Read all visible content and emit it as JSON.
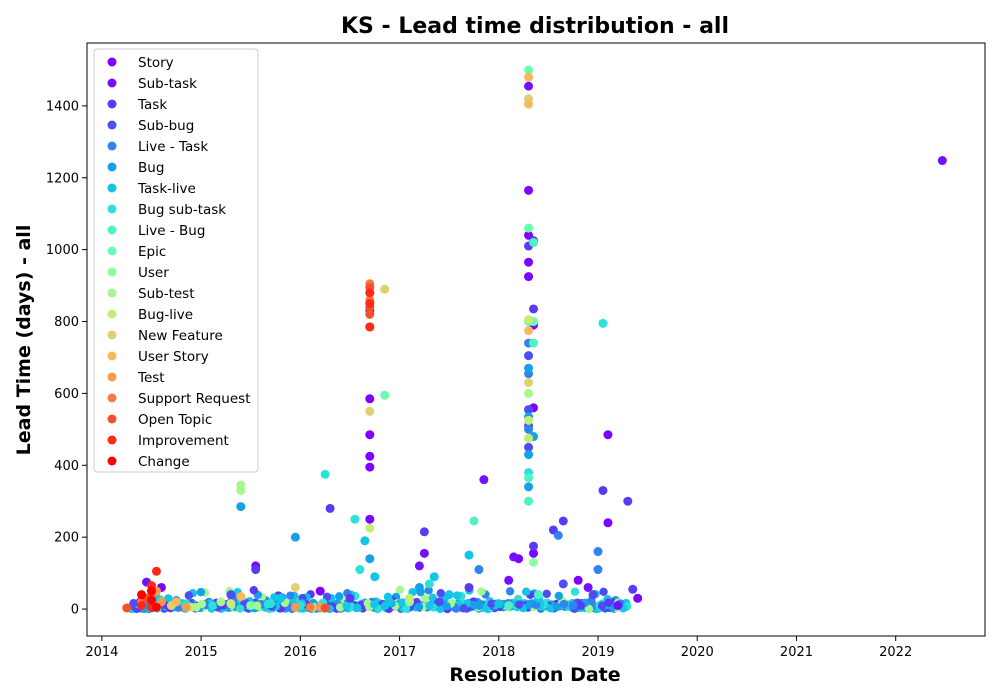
{
  "chart_data": {
    "type": "scatter",
    "title": "KS - Lead time distribution - all",
    "xlabel": "Resolution Date",
    "ylabel": "Lead Time (days) - all",
    "xlim": [
      2013.85,
      2022.9
    ],
    "ylim": [
      -75,
      1575
    ],
    "xticks": [
      2014,
      2015,
      2016,
      2017,
      2018,
      2019,
      2020,
      2021,
      2022
    ],
    "yticks": [
      0,
      200,
      400,
      600,
      800,
      1000,
      1200,
      1400
    ],
    "grid": false,
    "legend_position": "top-left",
    "series": [
      {
        "name": "Story",
        "color": "#8000ff",
        "points": [
          [
            2016.7,
            585
          ],
          [
            2016.7,
            485
          ],
          [
            2016.7,
            425
          ],
          [
            2016.7,
            395
          ],
          [
            2016.7,
            250
          ],
          [
            2018.3,
            1165
          ],
          [
            2018.3,
            1040
          ],
          [
            2018.3,
            965
          ],
          [
            2018.3,
            925
          ],
          [
            2018.35,
            790
          ],
          [
            2018.35,
            560
          ],
          [
            2018.35,
            155
          ],
          [
            2018.2,
            140
          ],
          [
            2018.8,
            80
          ],
          [
            2019.1,
            485
          ],
          [
            2019.1,
            240
          ],
          [
            2019.4,
            30
          ],
          [
            2016.2,
            50
          ],
          [
            2014.6,
            60
          ],
          [
            2015.55,
            120
          ]
        ]
      },
      {
        "name": "Sub-task",
        "color": "#7311ff",
        "points": [
          [
            2022.47,
            1248
          ],
          [
            2018.3,
            1455
          ],
          [
            2016.7,
            830
          ],
          [
            2017.85,
            360
          ],
          [
            2017.25,
            155
          ],
          [
            2018.15,
            145
          ],
          [
            2018.1,
            80
          ],
          [
            2017.2,
            120
          ],
          [
            2014.45,
            75
          ],
          [
            2018.9,
            60
          ],
          [
            2019.2,
            10
          ]
        ]
      },
      {
        "name": "Task",
        "color": "#5a3af5",
        "points": [
          [
            2018.35,
            835
          ],
          [
            2018.3,
            1010
          ],
          [
            2018.35,
            1025
          ],
          [
            2016.3,
            280
          ],
          [
            2017.25,
            215
          ],
          [
            2018.35,
            175
          ],
          [
            2018.55,
            220
          ],
          [
            2018.65,
            245
          ],
          [
            2019.05,
            330
          ],
          [
            2019.3,
            300
          ],
          [
            2015.55,
            110
          ],
          [
            2019.35,
            55
          ],
          [
            2017.7,
            60
          ],
          [
            2016.5,
            30
          ]
        ]
      },
      {
        "name": "Sub-bug",
        "color": "#4d4df3",
        "points": [
          [
            2018.3,
            705
          ],
          [
            2018.3,
            555
          ],
          [
            2018.3,
            510
          ],
          [
            2018.3,
            450
          ],
          [
            2018.65,
            70
          ],
          [
            2018.95,
            40
          ],
          [
            2017.4,
            20
          ],
          [
            2015.3,
            40
          ]
        ]
      },
      {
        "name": "Live - Task",
        "color": "#2f84f0",
        "points": [
          [
            2018.3,
            740
          ],
          [
            2018.3,
            655
          ],
          [
            2018.3,
            500
          ],
          [
            2019.0,
            160
          ],
          [
            2019.0,
            110
          ],
          [
            2018.6,
            205
          ],
          [
            2017.8,
            110
          ],
          [
            2018.75,
            10
          ]
        ]
      },
      {
        "name": "Bug",
        "color": "#16a0e8",
        "points": [
          [
            2015.4,
            285
          ],
          [
            2015.95,
            200
          ],
          [
            2018.3,
            670
          ],
          [
            2018.3,
            535
          ],
          [
            2018.3,
            430
          ],
          [
            2018.3,
            340
          ],
          [
            2018.35,
            480
          ],
          [
            2016.7,
            140
          ],
          [
            2017.2,
            60
          ],
          [
            2017.8,
            10
          ]
        ]
      },
      {
        "name": "Task-live",
        "color": "#12c4e6",
        "points": [
          [
            2016.75,
            90
          ],
          [
            2016.65,
            190
          ],
          [
            2017.35,
            90
          ],
          [
            2017.7,
            150
          ],
          [
            2018.4,
            30
          ],
          [
            2015.8,
            30
          ],
          [
            2016.9,
            20
          ],
          [
            2017.5,
            40
          ],
          [
            2018.0,
            15
          ]
        ]
      },
      {
        "name": "Bug sub-task",
        "color": "#2de0d8",
        "points": [
          [
            2016.25,
            375
          ],
          [
            2016.55,
            250
          ],
          [
            2016.6,
            110
          ],
          [
            2019.05,
            795
          ],
          [
            2018.3,
            380
          ],
          [
            2017.3,
            70
          ],
          [
            2015.7,
            15
          ],
          [
            2016.0,
            10
          ]
        ]
      },
      {
        "name": "Live - Bug",
        "color": "#4ef2c4",
        "points": [
          [
            2018.35,
            740
          ],
          [
            2018.35,
            1020
          ],
          [
            2017.75,
            245
          ],
          [
            2018.3,
            365
          ],
          [
            2018.3,
            300
          ],
          [
            2018.4,
            40
          ],
          [
            2018.1,
            10
          ]
        ]
      },
      {
        "name": "Epic",
        "color": "#6bfcb4",
        "points": [
          [
            2018.3,
            1500
          ],
          [
            2018.3,
            1060
          ],
          [
            2016.85,
            595
          ],
          [
            2018.3,
            800
          ],
          [
            2018.35,
            800
          ]
        ]
      },
      {
        "name": "User",
        "color": "#8cffa0",
        "points": [
          [
            2018.35,
            130
          ],
          [
            2017.1,
            20
          ],
          [
            2015.5,
            10
          ]
        ]
      },
      {
        "name": "Sub-test",
        "color": "#a6f88e",
        "points": [
          [
            2015.4,
            345
          ],
          [
            2015.4,
            330
          ],
          [
            2018.3,
            600
          ],
          [
            2015.2,
            20
          ],
          [
            2014.95,
            5
          ]
        ]
      },
      {
        "name": "Bug-live",
        "color": "#c4ec76",
        "points": [
          [
            2016.7,
            225
          ],
          [
            2018.3,
            805
          ],
          [
            2018.3,
            525
          ],
          [
            2018.3,
            475
          ],
          [
            2014.9,
            5
          ],
          [
            2015.3,
            15
          ],
          [
            2017.1,
            30
          ]
        ]
      },
      {
        "name": "New Feature",
        "color": "#e0d072",
        "points": [
          [
            2016.85,
            890
          ],
          [
            2016.7,
            550
          ],
          [
            2018.3,
            1420
          ],
          [
            2018.3,
            630
          ],
          [
            2015.95,
            60
          ],
          [
            2014.7,
            10
          ]
        ]
      },
      {
        "name": "User Story",
        "color": "#f8b85c",
        "points": [
          [
            2018.3,
            1405
          ],
          [
            2018.3,
            775
          ],
          [
            2018.3,
            1480
          ],
          [
            2014.75,
            20
          ],
          [
            2015.4,
            35
          ]
        ]
      },
      {
        "name": "Test",
        "color": "#f89a4e",
        "points": [
          [
            2014.55,
            50
          ],
          [
            2014.6,
            20
          ],
          [
            2016.2,
            5
          ],
          [
            2015.95,
            5
          ],
          [
            2014.85,
            5
          ]
        ]
      },
      {
        "name": "Support Request",
        "color": "#f97a3e",
        "points": [
          [
            2016.7,
            905
          ],
          [
            2016.7,
            785
          ],
          [
            2016.7,
            860
          ],
          [
            2014.5,
            35
          ],
          [
            2014.4,
            20
          ],
          [
            2016.1,
            5
          ]
        ]
      },
      {
        "name": "Open Topic",
        "color": "#f6512a",
        "points": [
          [
            2016.7,
            895
          ],
          [
            2016.7,
            840
          ],
          [
            2016.7,
            820
          ],
          [
            2014.45,
            30
          ],
          [
            2014.25,
            3
          ],
          [
            2016.25,
            3
          ]
        ]
      },
      {
        "name": "Improvement",
        "color": "#ff2a16",
        "points": [
          [
            2016.7,
            880
          ],
          [
            2016.7,
            850
          ],
          [
            2016.7,
            785
          ],
          [
            2014.5,
            65
          ],
          [
            2014.4,
            10
          ],
          [
            2014.55,
            105
          ],
          [
            2014.5,
            5
          ]
        ]
      },
      {
        "name": "Change",
        "color": "#ff0000",
        "points": [
          [
            2014.5,
            25
          ],
          [
            2014.55,
            5
          ],
          [
            2014.4,
            40
          ],
          [
            2014.5,
            50
          ]
        ]
      }
    ]
  }
}
